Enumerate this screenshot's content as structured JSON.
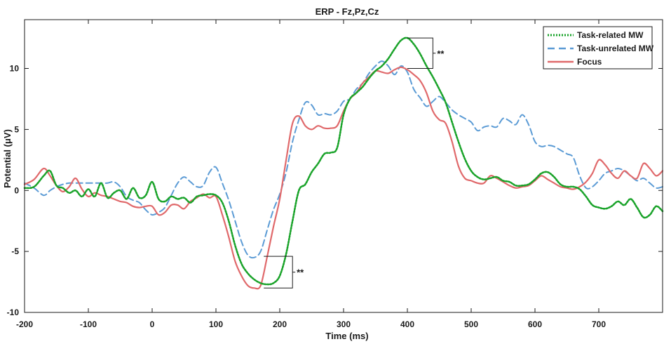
{
  "chart_data": {
    "type": "line",
    "title": "ERP - Fz,Pz,Cz",
    "xlabel": "Time (ms)",
    "ylabel": "Potential (μV)",
    "xlim": [
      -200,
      800
    ],
    "ylim": [
      -10,
      14
    ],
    "xticks": [
      -200,
      -100,
      0,
      100,
      200,
      300,
      400,
      500,
      600,
      700
    ],
    "yticks": [
      -10,
      -5,
      0,
      5,
      10
    ],
    "grid": false,
    "legend_position": "top-right",
    "series": [
      {
        "name": "Task-related MW",
        "color": "#1aa32a",
        "style": "dotted-dash",
        "x": [
          -200,
          -185,
          -170,
          -160,
          -150,
          -140,
          -130,
          -120,
          -110,
          -100,
          -90,
          -80,
          -70,
          -60,
          -50,
          -40,
          -30,
          -20,
          -10,
          0,
          10,
          20,
          30,
          40,
          50,
          60,
          70,
          80,
          90,
          100,
          110,
          120,
          130,
          140,
          150,
          160,
          170,
          180,
          190,
          200,
          210,
          220,
          230,
          240,
          250,
          260,
          270,
          280,
          290,
          300,
          310,
          320,
          330,
          340,
          350,
          360,
          370,
          380,
          390,
          400,
          410,
          420,
          430,
          440,
          450,
          460,
          470,
          480,
          490,
          500,
          510,
          520,
          530,
          540,
          550,
          560,
          570,
          580,
          590,
          600,
          610,
          620,
          630,
          640,
          650,
          660,
          670,
          680,
          690,
          700,
          710,
          720,
          730,
          740,
          750,
          760,
          770,
          780,
          790,
          800
        ],
        "y": [
          0.2,
          0.3,
          1.2,
          1.6,
          0.4,
          0.2,
          -0.2,
          0.0,
          -0.5,
          0.1,
          -0.5,
          0.6,
          -0.6,
          -0.2,
          0.0,
          -0.7,
          0.2,
          -0.6,
          -0.4,
          0.7,
          -0.7,
          -0.9,
          -0.5,
          -0.7,
          -0.6,
          -1.0,
          -0.5,
          -0.4,
          -0.3,
          -0.4,
          -1.0,
          -2.5,
          -4.5,
          -6.0,
          -6.8,
          -7.3,
          -7.6,
          -7.7,
          -7.6,
          -7.0,
          -5.2,
          -2.5,
          0.0,
          0.5,
          1.5,
          2.2,
          3.0,
          3.1,
          3.5,
          6.2,
          7.5,
          8.0,
          8.5,
          9.2,
          9.8,
          10.2,
          10.8,
          11.6,
          12.3,
          12.5,
          12.0,
          11.2,
          10.2,
          9.3,
          8.3,
          7.2,
          5.6,
          4.0,
          2.6,
          1.6,
          1.1,
          0.9,
          1.0,
          1.1,
          0.8,
          0.7,
          0.4,
          0.4,
          0.5,
          0.9,
          1.4,
          1.5,
          1.1,
          0.5,
          0.3,
          0.3,
          0.1,
          -0.5,
          -1.2,
          -1.4,
          -1.5,
          -1.3,
          -0.9,
          -1.2,
          -0.7,
          -1.4,
          -2.2,
          -2.0,
          -1.3,
          -1.7
        ],
        "annotation_points": [
          [
            400,
            12.5
          ],
          [
            400,
            10.0
          ]
        ]
      },
      {
        "name": "Task-unrelated MW",
        "color": "#5b9bd5",
        "style": "dashed",
        "x": [
          -200,
          -185,
          -170,
          -160,
          -150,
          -140,
          -130,
          -120,
          -110,
          -100,
          -90,
          -80,
          -70,
          -60,
          -50,
          -40,
          -30,
          -20,
          -10,
          0,
          10,
          20,
          30,
          40,
          50,
          60,
          70,
          80,
          90,
          100,
          110,
          120,
          130,
          140,
          150,
          160,
          170,
          180,
          190,
          200,
          210,
          220,
          230,
          240,
          250,
          260,
          270,
          280,
          290,
          300,
          310,
          320,
          330,
          340,
          350,
          360,
          370,
          380,
          390,
          400,
          410,
          420,
          430,
          440,
          450,
          460,
          470,
          480,
          490,
          500,
          510,
          520,
          530,
          540,
          550,
          560,
          570,
          580,
          590,
          600,
          610,
          620,
          630,
          640,
          650,
          660,
          670,
          680,
          690,
          700,
          710,
          720,
          730,
          740,
          750,
          760,
          770,
          780,
          790,
          800
        ],
        "y": [
          0.6,
          0.2,
          -0.4,
          0.0,
          0.3,
          0.5,
          0.6,
          0.6,
          0.6,
          0.6,
          0.6,
          0.6,
          0.6,
          0.7,
          0.3,
          -0.5,
          -0.8,
          -1.0,
          -1.6,
          -2.0,
          -1.8,
          -1.4,
          -0.4,
          0.6,
          1.1,
          0.7,
          0.3,
          0.4,
          1.5,
          1.9,
          0.6,
          -0.8,
          -2.5,
          -4.2,
          -5.3,
          -5.5,
          -5.0,
          -3.3,
          -1.6,
          -0.3,
          1.5,
          4.0,
          5.8,
          7.2,
          7.0,
          6.2,
          6.3,
          6.2,
          6.5,
          7.3,
          7.5,
          8.3,
          8.8,
          9.6,
          10.2,
          10.6,
          10.2,
          9.5,
          10.2,
          9.7,
          8.3,
          7.6,
          6.9,
          7.3,
          7.7,
          7.2,
          6.6,
          6.2,
          5.9,
          5.6,
          4.9,
          5.2,
          5.3,
          5.2,
          5.9,
          5.7,
          5.4,
          6.2,
          5.4,
          4.0,
          3.6,
          3.7,
          3.6,
          3.3,
          3.0,
          2.7,
          1.2,
          0.2,
          0.3,
          0.8,
          1.4,
          1.6,
          1.8,
          1.6,
          1.2,
          0.8,
          1.0,
          0.6,
          0.2,
          0.3
        ]
      },
      {
        "name": "Focus",
        "color": "#e0696b",
        "style": "solid",
        "x": [
          -200,
          -185,
          -170,
          -160,
          -150,
          -140,
          -130,
          -120,
          -110,
          -100,
          -90,
          -80,
          -70,
          -60,
          -50,
          -40,
          -30,
          -20,
          -10,
          0,
          10,
          20,
          30,
          40,
          50,
          60,
          70,
          80,
          90,
          100,
          110,
          120,
          130,
          140,
          150,
          160,
          170,
          180,
          190,
          200,
          210,
          220,
          230,
          240,
          250,
          260,
          270,
          280,
          290,
          300,
          310,
          320,
          330,
          340,
          350,
          360,
          370,
          380,
          390,
          400,
          410,
          420,
          430,
          440,
          450,
          460,
          470,
          480,
          490,
          500,
          510,
          520,
          530,
          540,
          550,
          560,
          570,
          580,
          590,
          600,
          610,
          620,
          630,
          640,
          650,
          660,
          670,
          680,
          690,
          700,
          710,
          720,
          730,
          740,
          750,
          760,
          770,
          780,
          790,
          800
        ],
        "y": [
          0.5,
          0.9,
          1.8,
          1.2,
          0.4,
          -0.1,
          0.3,
          1.0,
          0.1,
          -0.5,
          -0.2,
          -0.4,
          -0.5,
          -0.7,
          -0.9,
          -1.0,
          -1.3,
          -1.4,
          -1.3,
          -1.3,
          -2.0,
          -1.8,
          -1.2,
          -1.2,
          -1.5,
          -0.9,
          -0.6,
          -0.3,
          -0.6,
          -0.5,
          -2.0,
          -3.8,
          -5.8,
          -7.0,
          -7.8,
          -8.0,
          -7.8,
          -5.5,
          -3.0,
          -0.7,
          2.5,
          5.5,
          6.1,
          5.3,
          5.0,
          5.3,
          5.1,
          5.1,
          5.3,
          6.5,
          7.5,
          8.0,
          8.8,
          9.3,
          9.8,
          9.7,
          9.6,
          9.9,
          10.1,
          9.9,
          9.5,
          9.0,
          8.0,
          6.5,
          5.8,
          5.5,
          4.0,
          2.0,
          1.0,
          0.8,
          0.6,
          0.6,
          1.2,
          1.0,
          0.7,
          0.4,
          0.2,
          0.3,
          0.4,
          0.8,
          1.2,
          0.9,
          0.6,
          0.3,
          0.2,
          0.1,
          0.3,
          0.7,
          1.4,
          2.5,
          2.1,
          1.4,
          1.0,
          1.6,
          1.2,
          1.0,
          2.2,
          1.8,
          1.2,
          1.6
        ]
      }
    ],
    "annotations": [
      {
        "text": "**",
        "x_range": [
          400,
          440
        ],
        "y_top": 12.5,
        "y_bottom": 10.0
      },
      {
        "text": "**",
        "x_range": [
          175,
          220
        ],
        "y_top": -5.4,
        "y_bottom": -8.0
      }
    ]
  }
}
